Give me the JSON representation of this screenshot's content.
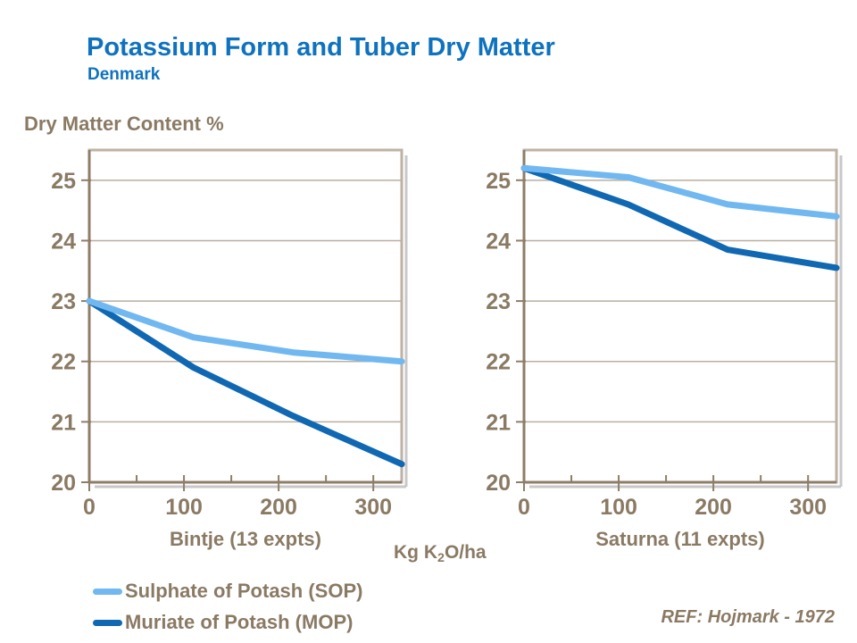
{
  "title": "Potassium Form and Tuber Dry Matter",
  "subtitle": "Denmark",
  "y_axis_title": "Dry Matter Content %",
  "x_axis_title": {
    "pre": "Kg K",
    "sub": "2",
    "post": "O/ha"
  },
  "reference": "REF: Hojmark - 1972",
  "colors": {
    "title": "#0e72be",
    "text": "#8a7a64",
    "axis": "#8e7e68",
    "frame": "#bdb2a4",
    "grid": "#b9ae9f",
    "shadow": "#c8c8c8",
    "sop": "#71b8f0",
    "mop": "#1068b2"
  },
  "legend": [
    {
      "label": "Sulphate of Potash (SOP)",
      "color": "#71b8f0"
    },
    {
      "label": "Muriate of Potash (MOP)",
      "color": "#1068b2"
    }
  ],
  "chart_data": [
    {
      "type": "line",
      "title": "Bintje (13 expts)",
      "x": [
        0,
        110,
        215,
        330
      ],
      "series": [
        {
          "name": "Sulphate of Potash (SOP)",
          "color": "#71b8f0",
          "values": [
            23.0,
            22.4,
            22.15,
            22.0
          ]
        },
        {
          "name": "Muriate of Potash (MOP)",
          "color": "#1068b2",
          "values": [
            23.0,
            21.9,
            21.1,
            20.3
          ]
        }
      ],
      "xlabel": "Kg K2O/ha",
      "ylabel": "Dry Matter Content %",
      "xlim": [
        0,
        330
      ],
      "ylim": [
        20,
        25.5
      ],
      "x_ticks": [
        0,
        100,
        200,
        300
      ],
      "x_minor_ticks": [
        50,
        100,
        150,
        200,
        250,
        300
      ],
      "y_ticks": [
        20,
        21,
        22,
        23,
        24,
        25
      ],
      "grid": "horizontal",
      "legend_position": "below"
    },
    {
      "type": "line",
      "title": "Saturna (11 expts)",
      "x": [
        0,
        110,
        215,
        330
      ],
      "series": [
        {
          "name": "Sulphate of Potash (SOP)",
          "color": "#71b8f0",
          "values": [
            25.2,
            25.05,
            24.6,
            24.4
          ]
        },
        {
          "name": "Muriate of Potash (MOP)",
          "color": "#1068b2",
          "values": [
            25.2,
            24.6,
            23.85,
            23.55
          ]
        }
      ],
      "xlabel": "Kg K2O/ha",
      "ylabel": "Dry Matter Content %",
      "xlim": [
        0,
        330
      ],
      "ylim": [
        20,
        25.5
      ],
      "x_ticks": [
        0,
        100,
        200,
        300
      ],
      "x_minor_ticks": [
        50,
        100,
        150,
        200,
        250,
        300
      ],
      "y_ticks": [
        20,
        21,
        22,
        23,
        24,
        25
      ],
      "grid": "horizontal",
      "legend_position": "below"
    }
  ]
}
